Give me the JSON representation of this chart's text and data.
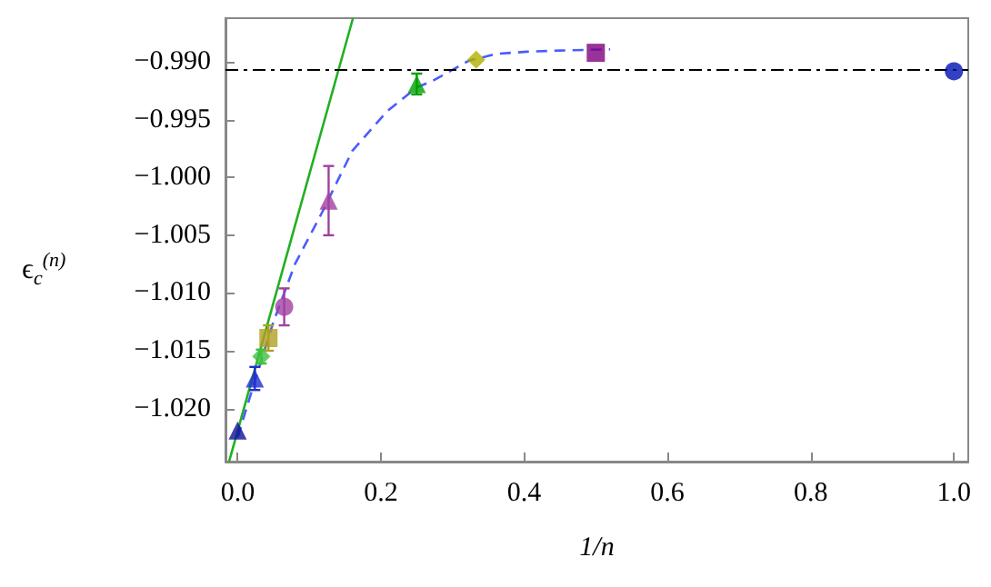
{
  "chart_data": {
    "type": "scatter",
    "xlabel": "1/n",
    "ylabel": "ϵ$_{c}$$^{(n)}$",
    "xlim": [
      -0.017,
      1.02
    ],
    "ylim": [
      -1.0246,
      -0.9862
    ],
    "xticks": [
      {
        "value": 0,
        "label": "0.0"
      },
      {
        "value": 0.2,
        "label": "0.2"
      },
      {
        "value": 0.4,
        "label": "0.4"
      },
      {
        "value": 0.6,
        "label": "0.6"
      },
      {
        "value": 0.8,
        "label": "0.8"
      },
      {
        "value": 1,
        "label": "1.0"
      }
    ],
    "yticks": [
      {
        "value": -0.99,
        "label": "−0.990"
      },
      {
        "value": -0.995,
        "label": "−0.995"
      },
      {
        "value": -1,
        "label": "−1.000"
      },
      {
        "value": -1.005,
        "label": "−1.005"
      },
      {
        "value": -1.01,
        "label": "−1.010"
      },
      {
        "value": -1.015,
        "label": "−1.015"
      },
      {
        "value": -1.02,
        "label": "−1.020"
      }
    ],
    "grid": false,
    "ref_lines": [
      {
        "axis": "y",
        "value": -0.9906,
        "color": "#000000",
        "line_style": "dashed"
      }
    ],
    "series": [
      {
        "type": "line",
        "color": "#20b020",
        "marker": "none",
        "line_style": "solid",
        "x": [
          -0.012,
          0.161
        ],
        "values": [
          -1.0246,
          -0.9862
        ]
      },
      {
        "type": "line",
        "color": "#4a5cff",
        "marker": "none",
        "line_style": "dashed",
        "x": [
          0,
          0.024,
          0.05,
          0.08,
          0.118,
          0.16,
          0.208,
          0.25,
          0.273,
          0.322,
          0.36,
          0.404,
          0.45,
          0.52
        ],
        "values": [
          -1.0225,
          -1.0176,
          -1.0125,
          -1.0075,
          -1.003,
          -0.9977,
          -0.9943,
          -0.9922,
          -0.9916,
          -0.9899,
          -0.9893,
          -0.9891,
          -0.989,
          -0.9889
        ]
      },
      {
        "color": "#10109a",
        "marker": "triangle",
        "x": [
          0
        ],
        "values": [
          -1.0219
        ]
      },
      {
        "color": "#2030d0",
        "marker": "triangle",
        "x": [
          0.024
        ],
        "values": [
          -1.0174
        ],
        "errors": [
          0.001
        ]
      },
      {
        "color": "#40c040",
        "marker": "diamond",
        "x": [
          0.033
        ],
        "values": [
          -1.0155
        ],
        "errors": [
          0.0006
        ]
      },
      {
        "color": "#b0a020",
        "marker": "square",
        "x": [
          0.043
        ],
        "values": [
          -1.0139
        ],
        "errors": [
          0.0011
        ]
      },
      {
        "color": "#a040a0",
        "marker": "circle",
        "x": [
          0.065
        ],
        "values": [
          -1.0112
        ],
        "errors": [
          0.0016
        ]
      },
      {
        "color": "#a040a0",
        "marker": "triangle",
        "x": [
          0.127
        ],
        "values": [
          -1.002
        ],
        "errors": [
          0.003
        ]
      },
      {
        "color": "#00a000",
        "marker": "triangle",
        "x": [
          0.25
        ],
        "values": [
          -0.9919
        ],
        "errors": [
          0.0009
        ]
      },
      {
        "color": "#b0b000",
        "marker": "diamond",
        "x": [
          0.333
        ],
        "values": [
          -0.9898
        ]
      },
      {
        "color": "#800080",
        "marker": "square",
        "x": [
          0.5
        ],
        "values": [
          -0.9892
        ]
      },
      {
        "color": "#0010b0",
        "marker": "circle",
        "x": [
          1
        ],
        "values": [
          -0.9908
        ]
      }
    ]
  }
}
